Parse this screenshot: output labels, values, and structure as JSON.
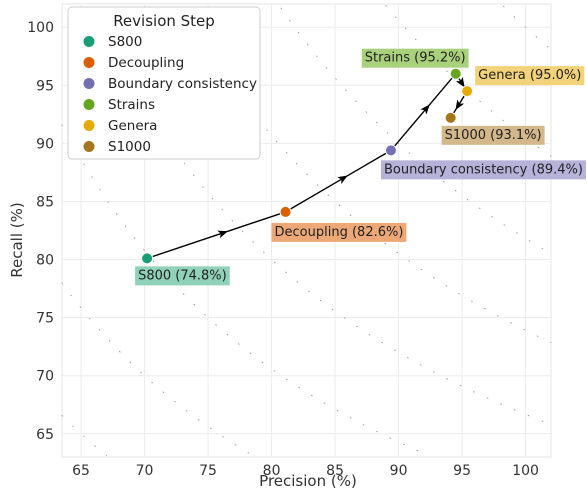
{
  "chart_data": {
    "type": "scatter",
    "title": "",
    "xlabel": "Precision (%)",
    "ylabel": "Recall (%)",
    "xlim": [
      63.5,
      102
    ],
    "ylim": [
      63,
      102
    ],
    "xticks": [
      65,
      70,
      75,
      80,
      85,
      90,
      95,
      100
    ],
    "yticks": [
      65,
      70,
      75,
      80,
      85,
      90,
      95,
      100
    ],
    "grid": true,
    "iso_f1_contours": true,
    "legend": {
      "title": "Revision Step",
      "placement": "top-left"
    },
    "series": [
      {
        "name": "S800",
        "x": 70.2,
        "y": 80.1,
        "label": "S800 (74.8%)",
        "color": "#1b9e77",
        "label_color": "#8fd1b9"
      },
      {
        "name": "Decoupling",
        "x": 81.1,
        "y": 84.1,
        "label": "Decoupling (82.6%)",
        "color": "#d95f02",
        "label_color": "#eda878"
      },
      {
        "name": "Boundary consistency",
        "x": 89.4,
        "y": 89.4,
        "label": "Boundary consistency (89.4%)",
        "color": "#7570b3",
        "label_color": "#b6b3da"
      },
      {
        "name": "Strains",
        "x": 94.5,
        "y": 96.0,
        "label": "Strains (95.2%)",
        "color": "#66a61e",
        "label_color": "#a9d17c"
      },
      {
        "name": "Genera",
        "x": 95.4,
        "y": 94.5,
        "label": "Genera (95.0%)",
        "color": "#e6ab02",
        "label_color": "#f3d379"
      },
      {
        "name": "S1000",
        "x": 94.1,
        "y": 92.2,
        "label": "S1000 (93.1%)",
        "color": "#a6761d",
        "label_color": "#d2b88a"
      }
    ]
  }
}
